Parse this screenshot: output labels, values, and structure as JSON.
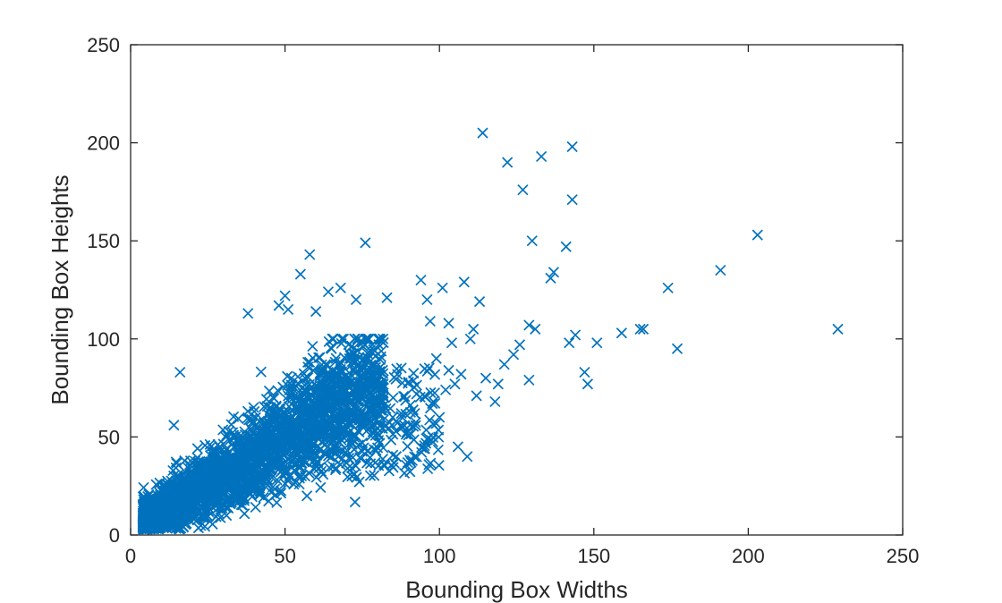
{
  "chart_data": {
    "type": "scatter",
    "title": "",
    "xlabel": "Bounding Box Widths",
    "ylabel": "Bounding Box Heights",
    "xlim": [
      0,
      250
    ],
    "ylim": [
      0,
      250
    ],
    "xticks": [
      0,
      50,
      100,
      150,
      200,
      250
    ],
    "yticks": [
      0,
      50,
      100,
      150,
      200,
      250
    ],
    "grid": false,
    "box": true,
    "marker": "x",
    "color": "#0072BD",
    "series": [
      {
        "points": [
          [
            114,
            205
          ],
          [
            143,
            198
          ],
          [
            133,
            193
          ],
          [
            122,
            190
          ],
          [
            127,
            176
          ],
          [
            143,
            171
          ],
          [
            130,
            150
          ],
          [
            141,
            147
          ],
          [
            137,
            134
          ],
          [
            136,
            131
          ],
          [
            203,
            153
          ],
          [
            191,
            135
          ],
          [
            174,
            126
          ],
          [
            229,
            105
          ],
          [
            177,
            95
          ],
          [
            165,
            105
          ],
          [
            166,
            105
          ],
          [
            159,
            103
          ],
          [
            151,
            98
          ],
          [
            144,
            102
          ],
          [
            142,
            98
          ],
          [
            147,
            83
          ],
          [
            148,
            77
          ],
          [
            129,
            79
          ],
          [
            129,
            107
          ],
          [
            131,
            105
          ],
          [
            126,
            97
          ],
          [
            124,
            92
          ],
          [
            121,
            87
          ],
          [
            119,
            77
          ],
          [
            113,
            119
          ],
          [
            108,
            129
          ],
          [
            111,
            105
          ],
          [
            103,
            108
          ],
          [
            96,
            120
          ],
          [
            97,
            109
          ],
          [
            94,
            130
          ],
          [
            101,
            126
          ],
          [
            83,
            121
          ],
          [
            76,
            149
          ],
          [
            58,
            143
          ],
          [
            55,
            133
          ],
          [
            68,
            126
          ],
          [
            64,
            124
          ],
          [
            73,
            120
          ],
          [
            50,
            122
          ],
          [
            48,
            117
          ],
          [
            38,
            113
          ],
          [
            51,
            115
          ],
          [
            60,
            114
          ],
          [
            104,
            98
          ],
          [
            110,
            100
          ],
          [
            103,
            84
          ],
          [
            99,
            90
          ],
          [
            105,
            77
          ],
          [
            109,
            40
          ],
          [
            106,
            45
          ],
          [
            100,
            60
          ],
          [
            98,
            68
          ],
          [
            102,
            74
          ],
          [
            107,
            82
          ],
          [
            112,
            71
          ],
          [
            115,
            80
          ],
          [
            118,
            68
          ],
          [
            16,
            83
          ],
          [
            14,
            56
          ],
          [
            85,
            70
          ],
          [
            90,
            78
          ],
          [
            92,
            62
          ],
          [
            88,
            55
          ],
          [
            86,
            40
          ],
          [
            82,
            36
          ],
          [
            80,
            52
          ],
          [
            95,
            44
          ]
        ]
      }
    ]
  }
}
